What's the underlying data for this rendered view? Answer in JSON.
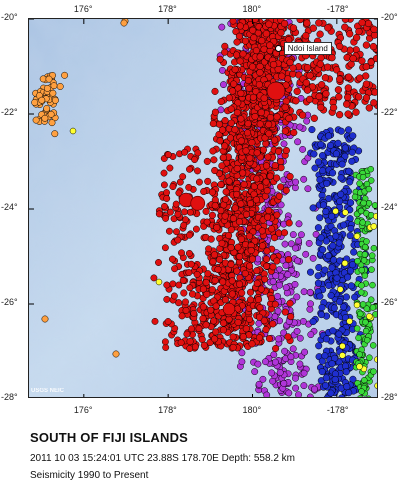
{
  "map": {
    "credit": "USGS NEIC",
    "place_label": "Ndoi Island",
    "place": {
      "lon": 180.6,
      "lat": -20.6
    },
    "event": {
      "lon": 178.7,
      "lat": -23.88
    },
    "extent": {
      "lon_min": 174.7,
      "lon_max": 183.0,
      "lat_min": -28.0,
      "lat_max": -20.0
    },
    "lon_ticks": [
      {
        "label": "176°",
        "lon": 176
      },
      {
        "label": "178°",
        "lon": 178
      },
      {
        "label": "180°",
        "lon": 180
      },
      {
        "label": "-178°",
        "lon": 182
      }
    ],
    "lat_ticks": [
      {
        "label": "-20°",
        "lat": -20
      },
      {
        "label": "-22°",
        "lat": -22
      },
      {
        "label": "-24°",
        "lat": -24
      },
      {
        "label": "-26°",
        "lat": -26
      },
      {
        "label": "-28°",
        "lat": -28
      }
    ],
    "colors": {
      "ocean": "#c4d8ee",
      "ocean_dark": "#8eaed3",
      "deep_red": "#e01010",
      "purple": "#b035d8",
      "blue": "#1f2fcf",
      "green": "#39d839",
      "orange": "#ffa040",
      "yellow": "#ffff30"
    }
  },
  "caption": {
    "title": "SOUTH OF FIJI ISLANDS",
    "event_line": "2011 10 03 15:24:01 UTC 23.88S 178.70E Depth: 558.2 km",
    "seismicity_line": "Seismicity 1990 to Present"
  }
}
